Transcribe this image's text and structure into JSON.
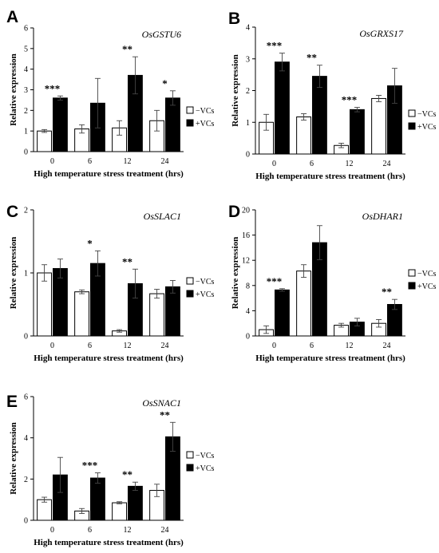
{
  "chart_data": [
    {
      "panel": "A",
      "type": "bar",
      "title": "OsGSTU6",
      "xlabel": "High temperature stress treatment (hrs)",
      "ylabel": "Relative expression",
      "categories": [
        "0",
        "6",
        "12",
        "24"
      ],
      "ylim": [
        0,
        6
      ],
      "yticks": [
        "0",
        "1",
        "2",
        "3",
        "4",
        "5",
        "6"
      ],
      "series": [
        {
          "name": "−VCs",
          "color": "#ffffff",
          "values": [
            1.0,
            1.1,
            1.15,
            1.5
          ],
          "errors": [
            0.07,
            0.2,
            0.35,
            0.5
          ]
        },
        {
          "name": "+VCs",
          "color": "#000000",
          "values": [
            2.6,
            2.35,
            3.7,
            2.6
          ],
          "errors": [
            0.1,
            1.2,
            0.9,
            0.35
          ]
        }
      ],
      "significance": [
        "***",
        "",
        "**",
        "*"
      ],
      "legend": "right"
    },
    {
      "panel": "B",
      "type": "bar",
      "title": "OsGRXS17",
      "xlabel": "High temperature stress treatment (hrs)",
      "ylabel": "Relative expression",
      "categories": [
        "0",
        "6",
        "12",
        "24"
      ],
      "ylim": [
        0,
        4
      ],
      "yticks": [
        "0",
        "1",
        "2",
        "3",
        "4"
      ],
      "series": [
        {
          "name": "−VCs",
          "color": "#ffffff",
          "values": [
            1.0,
            1.17,
            0.27,
            1.75
          ],
          "errors": [
            0.25,
            0.1,
            0.07,
            0.1
          ]
        },
        {
          "name": "+VCs",
          "color": "#000000",
          "values": [
            2.9,
            2.45,
            1.4,
            2.15
          ],
          "errors": [
            0.28,
            0.35,
            0.07,
            0.55
          ]
        }
      ],
      "significance": [
        "***",
        "**",
        "***",
        ""
      ],
      "legend": "right"
    },
    {
      "panel": "C",
      "type": "bar",
      "title": "OsSLAC1",
      "xlabel": "High temperature stress treatment (hrs)",
      "ylabel": "Relative expression",
      "categories": [
        "0",
        "6",
        "12",
        "24"
      ],
      "ylim": [
        0,
        2
      ],
      "yticks": [
        "0",
        "1",
        "2"
      ],
      "series": [
        {
          "name": "−VCs",
          "color": "#ffffff",
          "values": [
            1.0,
            0.7,
            0.08,
            0.67
          ],
          "errors": [
            0.13,
            0.03,
            0.02,
            0.07
          ]
        },
        {
          "name": "+VCs",
          "color": "#000000",
          "values": [
            1.07,
            1.15,
            0.83,
            0.78
          ],
          "errors": [
            0.15,
            0.2,
            0.23,
            0.1
          ]
        }
      ],
      "significance": [
        "",
        "*",
        "**",
        ""
      ],
      "legend": "right"
    },
    {
      "panel": "D",
      "type": "bar",
      "title": "OsDHAR1",
      "xlabel": "High temperature stress treatment (hrs)",
      "ylabel": "Relative expression",
      "categories": [
        "0",
        "6",
        "12",
        "24"
      ],
      "ylim": [
        0,
        20
      ],
      "yticks": [
        "0",
        "4",
        "8",
        "12",
        "16",
        "20"
      ],
      "series": [
        {
          "name": "−VCs",
          "color": "#ffffff",
          "values": [
            1.0,
            10.3,
            1.7,
            2.0
          ],
          "errors": [
            0.6,
            1.0,
            0.3,
            0.6
          ]
        },
        {
          "name": "+VCs",
          "color": "#000000",
          "values": [
            7.3,
            14.8,
            2.2,
            5.0
          ],
          "errors": [
            0.2,
            2.7,
            0.6,
            0.8
          ]
        }
      ],
      "significance": [
        "***",
        "",
        "",
        "**"
      ],
      "legend": "right"
    },
    {
      "panel": "E",
      "type": "bar",
      "title": "OsSNAC1",
      "xlabel": "High temperature stress treatment (hrs)",
      "ylabel": "Relative expression",
      "categories": [
        "0",
        "6",
        "12",
        "24"
      ],
      "ylim": [
        0,
        6
      ],
      "yticks": [
        "0",
        "2",
        "4",
        "6"
      ],
      "series": [
        {
          "name": "−VCs",
          "color": "#ffffff",
          "values": [
            1.0,
            0.45,
            0.85,
            1.45
          ],
          "errors": [
            0.12,
            0.12,
            0.05,
            0.3
          ]
        },
        {
          "name": "+VCs",
          "color": "#000000",
          "values": [
            2.2,
            2.05,
            1.65,
            4.05
          ],
          "errors": [
            0.85,
            0.25,
            0.2,
            0.7
          ]
        }
      ],
      "significance": [
        "",
        "***",
        "**",
        "**"
      ],
      "legend": "right"
    }
  ]
}
